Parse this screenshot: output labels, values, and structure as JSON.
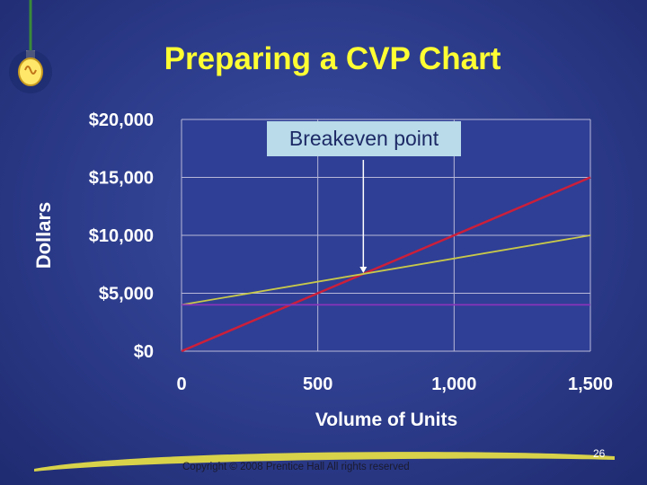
{
  "slide": {
    "title": "Preparing a CVP Chart",
    "copyright": "Copyright © 2008 Prentice Hall All rights reserved",
    "page_number": "26"
  },
  "colors": {
    "title": "#ffff33",
    "revenue_line": "#cc1f3a",
    "total_cost_line": "#c8c84a",
    "fixed_cost_line": "#8833bb",
    "plot_background": "#2f3f95",
    "grid": "#b8b8d8"
  },
  "icons": [
    "light-bulb-icon"
  ],
  "chart_data": {
    "type": "line",
    "title": "",
    "xlabel": "Volume of Units",
    "ylabel": "Dollars",
    "xlim": [
      0,
      1500
    ],
    "ylim": [
      0,
      20000
    ],
    "x_ticks": [
      0,
      500,
      1000,
      1500
    ],
    "x_tick_labels": [
      "0",
      "500",
      "1,000",
      "1,500"
    ],
    "y_ticks": [
      0,
      5000,
      10000,
      15000,
      20000
    ],
    "y_tick_labels": [
      "$0",
      "$5,000",
      "$10,000",
      "$15,000",
      "$20,000"
    ],
    "grid": true,
    "series": [
      {
        "x": [
          0,
          1500
        ],
        "values": [
          0,
          15000
        ],
        "color": "#cc1f3a"
      },
      {
        "x": [
          0,
          1500
        ],
        "values": [
          4000,
          10000
        ],
        "color": "#c8c84a"
      },
      {
        "x": [
          0,
          1500
        ],
        "values": [
          4000,
          4000
        ],
        "color": "#8833bb"
      }
    ],
    "annotations": [
      {
        "text": "Breakeven point",
        "x": 667,
        "y": 6667
      }
    ]
  }
}
